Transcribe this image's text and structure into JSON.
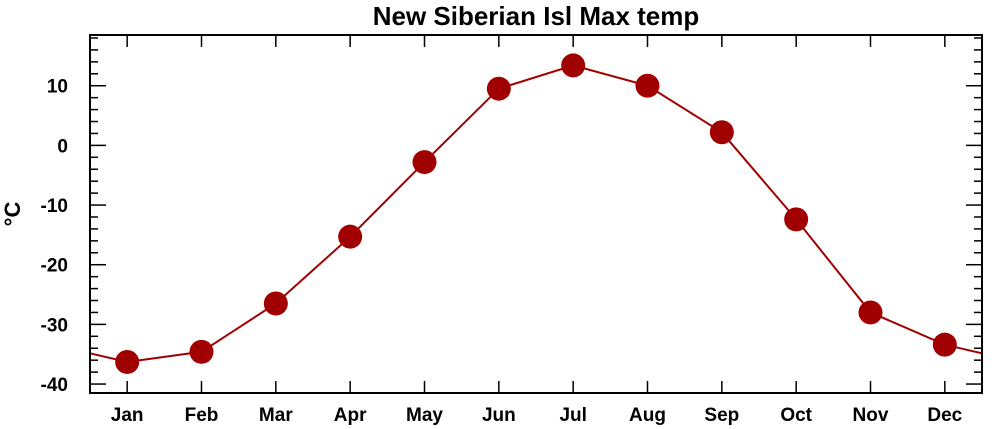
{
  "chart_data": {
    "type": "line",
    "title": "New Siberian Isl Max temp",
    "xlabel": "",
    "ylabel": "°C",
    "categories": [
      "Jan",
      "Feb",
      "Mar",
      "Apr",
      "May",
      "Jun",
      "Jul",
      "Aug",
      "Sep",
      "Oct",
      "Nov",
      "Dec"
    ],
    "series": [
      {
        "values": [
          -36.3,
          -34.6,
          -26.5,
          -15.3,
          -2.8,
          9.5,
          13.4,
          10.0,
          2.2,
          -12.4,
          -28.0,
          -33.4
        ],
        "color": "#a00000"
      }
    ],
    "ylim": [
      -41.5,
      18.5
    ],
    "yticks": [
      -40,
      -30,
      -20,
      -10,
      0,
      10
    ],
    "grid": false,
    "line_extends_past_edges": true,
    "colors": {
      "line": "#a00000",
      "marker": "#a00000",
      "axis": "#000000"
    }
  }
}
